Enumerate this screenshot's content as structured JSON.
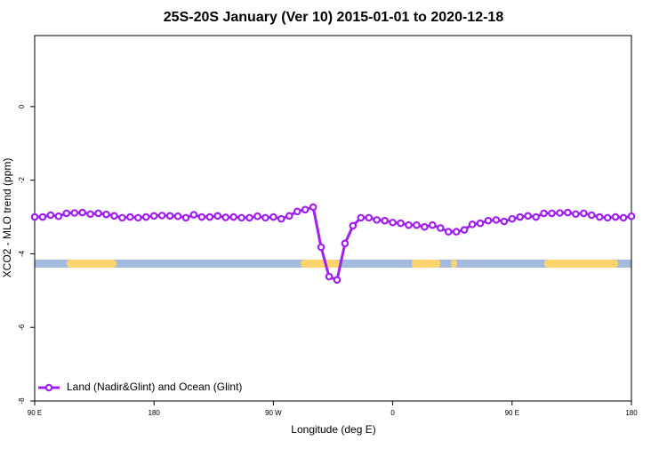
{
  "chart_data": {
    "type": "line",
    "title": "25S-20S January (Ver 10)   2015-01-01 to 2020-12-18",
    "xlabel": "Longitude (deg E)",
    "ylabel": "XCO2 - MLO trend (ppm)",
    "x": [
      90,
      96,
      102,
      108,
      114,
      120,
      126,
      132,
      138,
      144,
      150,
      156,
      162,
      168,
      174,
      180,
      186,
      192,
      198,
      204,
      210,
      216,
      222,
      228,
      234,
      240,
      246,
      252,
      258,
      264,
      270,
      276,
      282,
      288,
      294,
      300,
      306,
      312,
      318,
      324,
      330,
      336,
      342,
      348,
      354,
      360,
      366,
      372,
      378,
      384,
      390,
      396,
      402,
      408,
      414,
      420,
      426,
      432,
      438,
      444,
      450,
      456,
      462,
      468,
      474,
      480,
      486,
      492,
      498,
      504,
      510,
      516,
      522,
      528,
      534,
      540
    ],
    "series": [
      {
        "name": "Land (Nadir&Glint) and Ocean (Glint)",
        "color": "#a020f0",
        "values": [
          -3.0,
          -3.0,
          -2.95,
          -2.98,
          -2.9,
          -2.89,
          -2.88,
          -2.92,
          -2.9,
          -2.93,
          -2.97,
          -3.02,
          -3.0,
          -3.02,
          -3.0,
          -2.97,
          -2.96,
          -2.97,
          -2.98,
          -3.02,
          -2.94,
          -3.0,
          -3.0,
          -2.97,
          -3.01,
          -3.0,
          -3.02,
          -3.02,
          -2.98,
          -3.02,
          -3.0,
          -3.05,
          -2.97,
          -2.85,
          -2.8,
          -2.73,
          -3.82,
          -4.62,
          -4.71,
          -3.72,
          -3.24,
          -3.02,
          -3.02,
          -3.08,
          -3.1,
          -3.15,
          -3.17,
          -3.22,
          -3.22,
          -3.27,
          -3.22,
          -3.3,
          -3.4,
          -3.4,
          -3.35,
          -3.2,
          -3.17,
          -3.1,
          -3.08,
          -3.12,
          -3.05,
          -3.0,
          -2.97,
          -3.0,
          -2.9,
          -2.9,
          -2.89,
          -2.88,
          -2.92,
          -2.9,
          -2.95,
          -3.0,
          -3.02,
          -3.0,
          -3.02,
          -2.98
        ]
      }
    ],
    "xlim": [
      90,
      540
    ],
    "xticks": [
      {
        "value": 90,
        "label": "90 E"
      },
      180,
      {
        "value": 270,
        "label": "90 W"
      },
      {
        "value": 360,
        "label": "0"
      },
      {
        "value": 450,
        "label": "90 E"
      },
      {
        "value": 540,
        "label": "180"
      }
    ],
    "ylim": [
      -8,
      1.93
    ],
    "yticks": [
      -8,
      -6,
      -4,
      -2,
      0
    ],
    "legend": "bottom-left"
  }
}
